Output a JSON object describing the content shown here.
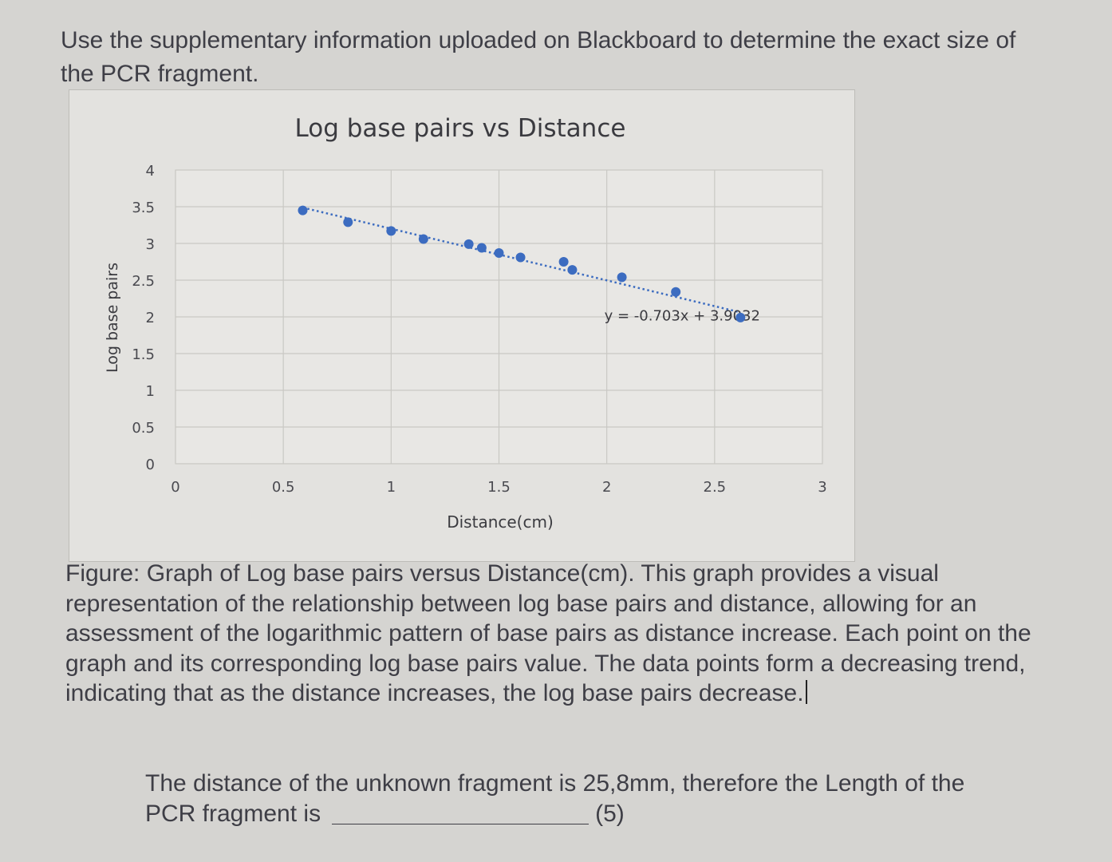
{
  "intro": {
    "text": "Use the supplementary information uploaded on Blackboard to determine the exact size of the PCR fragment."
  },
  "chart_data": {
    "type": "scatter",
    "title": "Log base pairs vs Distance",
    "xlabel": "Distance(cm)",
    "ylabel": "Log base pairs",
    "xlim": [
      0,
      3
    ],
    "ylim": [
      0,
      4
    ],
    "x_ticks": [
      "0",
      "0.5",
      "1",
      "1.5",
      "2",
      "2.5",
      "3"
    ],
    "y_ticks": [
      "0",
      "0.5",
      "1",
      "1.5",
      "2",
      "2.5",
      "3",
      "3.5",
      "4"
    ],
    "grid": true,
    "trendline": {
      "type": "linear",
      "slope": -0.703,
      "intercept": 3.9032,
      "label": "y = -0.703x + 3.9032",
      "style": "dotted"
    },
    "series": [
      {
        "color": "#3c6cc0",
        "points": [
          {
            "x": 0.59,
            "y": 3.45
          },
          {
            "x": 0.8,
            "y": 3.29
          },
          {
            "x": 1.0,
            "y": 3.17
          },
          {
            "x": 1.15,
            "y": 3.06
          },
          {
            "x": 1.36,
            "y": 2.99
          },
          {
            "x": 1.42,
            "y": 2.94
          },
          {
            "x": 1.5,
            "y": 2.87
          },
          {
            "x": 1.6,
            "y": 2.81
          },
          {
            "x": 1.8,
            "y": 2.75
          },
          {
            "x": 1.84,
            "y": 2.64
          },
          {
            "x": 2.07,
            "y": 2.54
          },
          {
            "x": 2.32,
            "y": 2.34
          },
          {
            "x": 2.62,
            "y": 1.99
          }
        ]
      }
    ]
  },
  "caption": {
    "text": "Figure: Graph of Log base pairs versus Distance(cm). This graph provides a visual representation of the relationship between log base pairs and distance, allowing for an assessment of the logarithmic pattern of base pairs as distance increase. Each point on the graph and its corresponding log base pairs value. The data points form a decreasing trend, indicating that as the distance increases, the log base pairs decrease."
  },
  "question": {
    "line1": "The distance of the unknown fragment is 25,8mm, therefore the Length of the",
    "line2_prefix": "PCR fragment is",
    "marks": "(5)"
  }
}
